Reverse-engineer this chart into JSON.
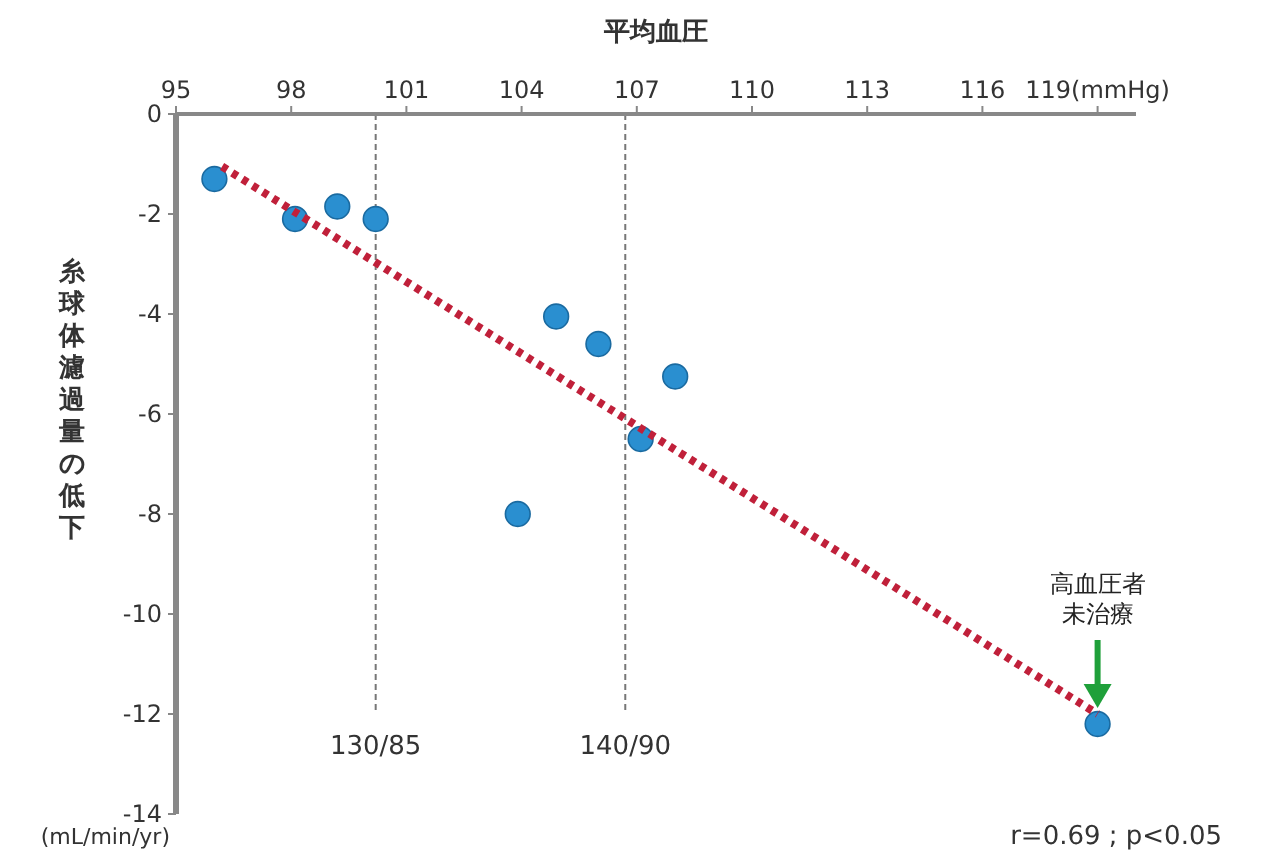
{
  "chart_data": {
    "type": "scatter",
    "xlabel": "平均血圧",
    "ylabel": "糸球体濾過量の低下",
    "xlim": [
      95,
      120
    ],
    "xticks": [
      95,
      98,
      101,
      104,
      107,
      110,
      113,
      116,
      {
        "value": 119,
        "label": "119(mmHg)"
      }
    ],
    "ylim": [
      -14,
      0
    ],
    "yticks": [
      0,
      -2,
      -4,
      -6,
      -8,
      -10,
      -12,
      -14
    ],
    "grid": false,
    "series": [
      {
        "color": "#2a8fd0",
        "marker": "circle",
        "x": [
          96.0,
          98.1,
          99.2,
          100.2,
          104.9,
          106.0,
          108.0,
          107.1,
          103.9,
          119.0
        ],
        "values": [
          -1.3,
          -2.1,
          -1.85,
          -2.1,
          -4.05,
          -4.6,
          -5.25,
          -6.5,
          -8.0,
          -12.2
        ]
      },
      {
        "type": "line",
        "color": "#c0203a",
        "line_style": "dotted",
        "x": [
          96.2,
          119.0
        ],
        "values": [
          -1.05,
          -12.0
        ]
      }
    ],
    "ref_lines": [
      {
        "axis": "x",
        "value": 100.2,
        "color": "#777777",
        "line_style": "dashed"
      },
      {
        "axis": "x",
        "value": 106.7,
        "color": "#777777",
        "line_style": "dashed"
      }
    ],
    "annotations": [
      "高血圧者未治療",
      "130/85",
      "140/90",
      "(mL/min/yr)",
      "r=0.69 ; p<0.05"
    ]
  }
}
